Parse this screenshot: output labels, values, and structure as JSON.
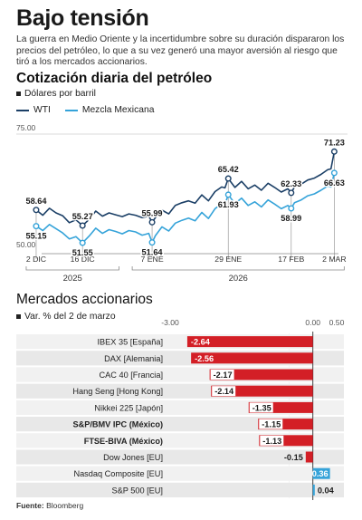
{
  "title": "Bajo tensión",
  "subtitle": "La guerra en Medio Oriente y la incertidumbre sobre su duración dispararon los precios del petróleo, lo que a su vez generó una mayor aversión al riesgo que tiró a los mercados accionarios.",
  "source_label": "Fuente:",
  "source_value": "Bloomberg",
  "colors": {
    "wti": "#1b3f66",
    "mezcla": "#35a3d9",
    "negative": "#d31f26",
    "positive": "#35a3d9"
  },
  "chart_data": [
    {
      "type": "line",
      "title": "Cotización diaria del petróleo",
      "ylabel": "Dólares por barril",
      "ylim": [
        50.0,
        75.0
      ],
      "y_ticks": [
        "75.00",
        "50.00"
      ],
      "x_ticks": [
        "2 DIC",
        "16 DIC",
        "7 ENE",
        "29 ENE",
        "17 FEB",
        "2 MAR"
      ],
      "x_years": [
        "2025",
        "2026"
      ],
      "grid": true,
      "legend": "top-left",
      "series": [
        {
          "name": "WTI",
          "labels": [
            {
              "x": 0,
              "y": 58.64
            },
            {
              "x": 14,
              "y": 55.27
            },
            {
              "x": 35,
              "y": 55.99
            },
            {
              "x": 58,
              "y": 65.42
            },
            {
              "x": 77,
              "y": 62.33
            },
            {
              "x": 90,
              "y": 71.23
            }
          ],
          "points": [
            [
              0,
              58.64
            ],
            [
              2,
              57.5
            ],
            [
              4,
              59.0
            ],
            [
              6,
              58.0
            ],
            [
              8,
              57.4
            ],
            [
              10,
              55.9
            ],
            [
              12,
              56.5
            ],
            [
              14,
              55.27
            ],
            [
              16,
              56.6
            ],
            [
              18,
              58.4
            ],
            [
              20,
              57.3
            ],
            [
              22,
              58.0
            ],
            [
              24,
              57.6
            ],
            [
              26,
              57.2
            ],
            [
              28,
              57.8
            ],
            [
              30,
              57.5
            ],
            [
              32,
              57.0
            ],
            [
              34,
              57.3
            ],
            [
              35,
              55.99
            ],
            [
              36,
              57.0
            ],
            [
              38,
              58.6
            ],
            [
              40,
              57.8
            ],
            [
              42,
              59.6
            ],
            [
              44,
              60.2
            ],
            [
              46,
              60.6
            ],
            [
              48,
              60.1
            ],
            [
              50,
              61.9
            ],
            [
              52,
              60.6
            ],
            [
              54,
              62.6
            ],
            [
              56,
              63.6
            ],
            [
              57,
              63.4
            ],
            [
              58,
              65.42
            ],
            [
              60,
              63.5
            ],
            [
              62,
              64.8
            ],
            [
              64,
              63.2
            ],
            [
              66,
              64.0
            ],
            [
              68,
              62.9
            ],
            [
              70,
              64.4
            ],
            [
              72,
              63.5
            ],
            [
              74,
              62.5
            ],
            [
              76,
              63.2
            ],
            [
              77,
              62.33
            ],
            [
              78,
              63.6
            ],
            [
              80,
              64.2
            ],
            [
              82,
              65.1
            ],
            [
              84,
              65.5
            ],
            [
              86,
              66.3
            ],
            [
              88,
              67.3
            ],
            [
              89,
              67.5
            ],
            [
              90,
              71.23
            ]
          ]
        },
        {
          "name": "Mezcla Mexicana",
          "labels": [
            {
              "x": 0,
              "y": 55.15
            },
            {
              "x": 14,
              "y": 51.55
            },
            {
              "x": 35,
              "y": 51.64
            },
            {
              "x": 58,
              "y": 61.93
            },
            {
              "x": 77,
              "y": 58.99
            },
            {
              "x": 90,
              "y": 66.63
            }
          ],
          "points": [
            [
              0,
              55.15
            ],
            [
              2,
              54.2
            ],
            [
              4,
              55.5
            ],
            [
              6,
              54.6
            ],
            [
              8,
              53.7
            ],
            [
              10,
              52.4
            ],
            [
              12,
              52.9
            ],
            [
              14,
              51.55
            ],
            [
              16,
              53.0
            ],
            [
              18,
              54.7
            ],
            [
              20,
              53.6
            ],
            [
              22,
              54.4
            ],
            [
              24,
              54.0
            ],
            [
              26,
              53.5
            ],
            [
              28,
              54.2
            ],
            [
              30,
              53.9
            ],
            [
              32,
              53.2
            ],
            [
              34,
              53.6
            ],
            [
              35,
              51.64
            ],
            [
              36,
              53.1
            ],
            [
              38,
              55.0
            ],
            [
              40,
              54.1
            ],
            [
              42,
              55.8
            ],
            [
              44,
              56.4
            ],
            [
              46,
              56.9
            ],
            [
              48,
              56.3
            ],
            [
              50,
              58.1
            ],
            [
              52,
              56.8
            ],
            [
              54,
              58.9
            ],
            [
              56,
              60.0
            ],
            [
              57,
              59.8
            ],
            [
              58,
              61.93
            ],
            [
              60,
              60.0
            ],
            [
              62,
              61.2
            ],
            [
              64,
              59.6
            ],
            [
              66,
              60.4
            ],
            [
              68,
              59.3
            ],
            [
              70,
              60.8
            ],
            [
              72,
              59.9
            ],
            [
              74,
              58.9
            ],
            [
              76,
              59.6
            ],
            [
              77,
              58.99
            ],
            [
              78,
              60.2
            ],
            [
              80,
              60.8
            ],
            [
              82,
              61.7
            ],
            [
              84,
              62.1
            ],
            [
              86,
              62.9
            ],
            [
              88,
              63.8
            ],
            [
              89,
              63.6
            ],
            [
              90,
              66.63
            ]
          ]
        }
      ]
    },
    {
      "type": "bar",
      "title": "Mercados accionarios",
      "ylabel": "Var. % del 2 de marzo",
      "ylim": [
        -3.0,
        0.5
      ],
      "ticks": [
        "-3.00",
        "0.00",
        "0.50"
      ],
      "grid": true,
      "categories": [
        "IBEX 35 [España]",
        "DAX [Alemania]",
        "CAC 40 [Francia]",
        "Hang Seng [Hong Kong]",
        "Nikkei 225 [Japón]",
        "S&P/BMV IPC (México)",
        "FTSE-BIVA (México)",
        "Dow Jones [EU]",
        "Nasdaq Composite [EU]",
        "S&P 500 [EU]"
      ],
      "bold": [
        false,
        false,
        false,
        false,
        false,
        true,
        true,
        false,
        false,
        false
      ],
      "values": [
        -2.64,
        -2.56,
        -2.17,
        -2.14,
        -1.35,
        -1.15,
        -1.13,
        -0.15,
        0.36,
        0.04
      ],
      "value_labels": [
        "-2.64",
        "-2.56",
        "-2.17",
        "-2.14",
        "-1.35",
        "-1.15",
        "-1.13",
        "-0.15",
        "0.36",
        "0.04"
      ]
    }
  ]
}
